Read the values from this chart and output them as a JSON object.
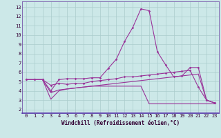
{
  "background_color": "#cce8e8",
  "grid_color": "#aacccc",
  "line_color": "#993399",
  "xlabel": "Windchill (Refroidissement éolien,°C)",
  "x_ticks": [
    0,
    1,
    2,
    3,
    4,
    5,
    6,
    7,
    8,
    9,
    10,
    11,
    12,
    13,
    14,
    15,
    16,
    17,
    18,
    19,
    20,
    21,
    22,
    23
  ],
  "y_ticks": [
    2,
    3,
    4,
    5,
    6,
    7,
    8,
    9,
    10,
    11,
    12,
    13
  ],
  "ylim": [
    1.6,
    13.6
  ],
  "xlim": [
    -0.5,
    23.5
  ],
  "series": [
    {
      "y": [
        5.2,
        5.2,
        5.2,
        4.0,
        5.2,
        5.3,
        5.3,
        5.3,
        5.4,
        5.4,
        6.4,
        7.4,
        9.3,
        10.8,
        12.8,
        12.6,
        8.2,
        6.8,
        5.5,
        5.6,
        6.5,
        6.5,
        3.0,
        2.7
      ],
      "markers": true
    },
    {
      "y": [
        5.2,
        5.2,
        5.2,
        4.6,
        4.8,
        4.7,
        4.8,
        4.8,
        5.0,
        5.1,
        5.2,
        5.3,
        5.5,
        5.5,
        5.6,
        5.7,
        5.8,
        5.9,
        6.0,
        6.1,
        6.2,
        4.4,
        3.0,
        2.7
      ],
      "markers": true
    },
    {
      "y": [
        5.2,
        5.2,
        5.2,
        3.1,
        4.0,
        4.2,
        4.3,
        4.4,
        4.5,
        4.5,
        4.5,
        4.5,
        4.5,
        4.5,
        4.5,
        2.6,
        2.6,
        2.6,
        2.6,
        2.6,
        2.6,
        2.6,
        2.6,
        2.6
      ],
      "markers": false
    },
    {
      "y": [
        5.2,
        5.2,
        5.2,
        3.8,
        4.1,
        4.2,
        4.3,
        4.4,
        4.5,
        4.6,
        4.7,
        4.8,
        4.9,
        5.0,
        5.1,
        5.2,
        5.3,
        5.4,
        5.5,
        5.6,
        5.7,
        5.8,
        3.0,
        2.7
      ],
      "markers": false
    }
  ]
}
